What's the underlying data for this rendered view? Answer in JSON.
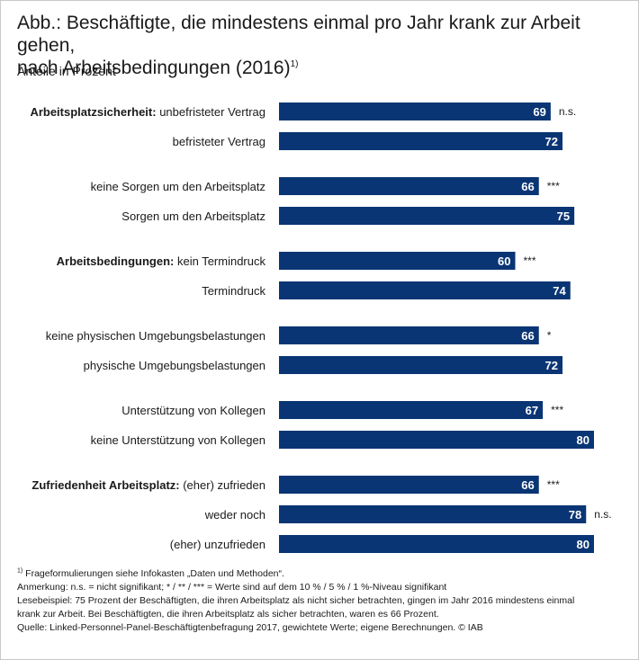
{
  "header": {
    "title_line1": "Abb.: Beschäftigte, die mindestens einmal pro Jahr krank zur Arbeit gehen,",
    "title_line2": "nach Arbeitsbedingungen (2016)",
    "title_footnote": "1)",
    "subtitle": "Anteile in Prozent"
  },
  "chart_data": {
    "type": "bar",
    "orientation": "horizontal",
    "title": "Beschäftigte, die mindestens einmal pro Jahr krank zur Arbeit gehen, nach Arbeitsbedingungen (2016)",
    "unit": "Prozent",
    "bar_color": "#0a3574",
    "rows": [
      {
        "group": "Arbeitsplatzsicherheit:",
        "label": "unbefristeter Vertrag",
        "value": 69,
        "significance": "n.s."
      },
      {
        "group": "",
        "label": "befristeter Vertrag",
        "value": 72,
        "significance": ""
      },
      {
        "group": "",
        "label": "keine Sorgen um den Arbeitsplatz",
        "value": 66,
        "significance": "***"
      },
      {
        "group": "",
        "label": "Sorgen um den Arbeitsplatz",
        "value": 75,
        "significance": ""
      },
      {
        "group": "Arbeitsbedingungen:",
        "label": "kein Termindruck",
        "value": 60,
        "significance": "***"
      },
      {
        "group": "",
        "label": "Termindruck",
        "value": 74,
        "significance": ""
      },
      {
        "group": "",
        "label": "keine physischen Umgebungsbelastungen",
        "value": 66,
        "significance": "*"
      },
      {
        "group": "",
        "label": "physische Umgebungsbelastungen",
        "value": 72,
        "significance": ""
      },
      {
        "group": "",
        "label": "Unterstützung von Kollegen",
        "value": 67,
        "significance": "***"
      },
      {
        "group": "",
        "label": "keine Unterstützung von Kollegen",
        "value": 80,
        "significance": ""
      },
      {
        "group": "Zufriedenheit Arbeitsplatz:",
        "label": "(eher) zufrieden",
        "value": 66,
        "significance": "***"
      },
      {
        "group": "",
        "label": "weder noch",
        "value": 78,
        "significance": "n.s."
      },
      {
        "group": "",
        "label": "(eher) unzufrieden",
        "value": 80,
        "significance": ""
      }
    ]
  },
  "notes": {
    "footnote_mark": "1)",
    "footnote_text": "Frageformulierungen siehe Infokasten „Daten und Methoden“.",
    "remark": "Anmerkung: n.s. = nicht signifikant; * / ** / *** = Werte sind auf dem 10 % / 5 % / 1 %-Niveau signifikant",
    "reading_example_line1": "Lesebeispiel: 75 Prozent der Beschäftigten, die ihren Arbeitsplatz als nicht sicher betrachten, gingen im Jahr 2016 mindestens einmal",
    "reading_example_line2": "krank zur Arbeit. Bei Beschäftigten, die ihren Arbeitsplatz als sicher betrachten, waren es 66 Prozent.",
    "source": "Quelle: Linked-Personnel-Panel-Beschäftigtenbefragung 2017, gewichtete Werte; eigene Berechnungen. © IAB"
  }
}
